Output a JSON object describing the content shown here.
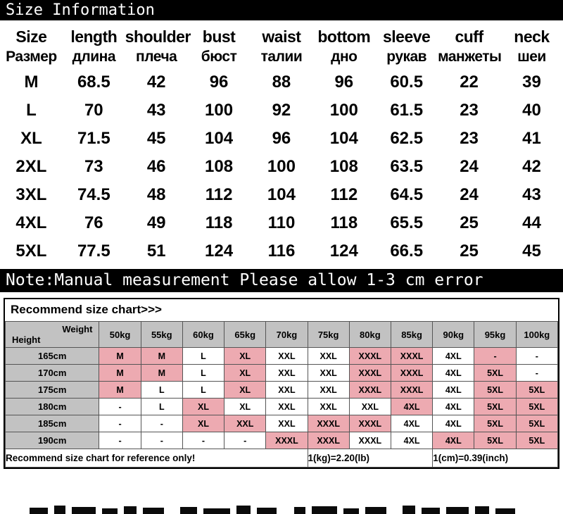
{
  "title_bar": {
    "text": "Size Information"
  },
  "size_table": {
    "columns": [
      {
        "en": "Size",
        "ru": "Размер"
      },
      {
        "en": "length",
        "ru": "длина"
      },
      {
        "en": "shoulder",
        "ru": "плеча"
      },
      {
        "en": "bust",
        "ru": "бюст"
      },
      {
        "en": "waist",
        "ru": "талии"
      },
      {
        "en": "bottom",
        "ru": "дно"
      },
      {
        "en": "sleeve",
        "ru": "рукав"
      },
      {
        "en": "cuff",
        "ru": "манжеты"
      },
      {
        "en": "neck",
        "ru": "шеи"
      }
    ],
    "rows": [
      [
        "M",
        "68.5",
        "42",
        "96",
        "88",
        "96",
        "60.5",
        "22",
        "39"
      ],
      [
        "L",
        "70",
        "43",
        "100",
        "92",
        "100",
        "61.5",
        "23",
        "40"
      ],
      [
        "XL",
        "71.5",
        "45",
        "104",
        "96",
        "104",
        "62.5",
        "23",
        "41"
      ],
      [
        "2XL",
        "73",
        "46",
        "108",
        "100",
        "108",
        "63.5",
        "24",
        "42"
      ],
      [
        "3XL",
        "74.5",
        "48",
        "112",
        "104",
        "112",
        "64.5",
        "24",
        "43"
      ],
      [
        "4XL",
        "76",
        "49",
        "118",
        "110",
        "118",
        "65.5",
        "25",
        "44"
      ],
      [
        "5XL",
        "77.5",
        "51",
        "124",
        "116",
        "124",
        "66.5",
        "25",
        "45"
      ]
    ]
  },
  "note_bar": {
    "text": "Note:Manual measurement Please allow 1-3 cm error"
  },
  "recommend": {
    "title": "Recommend size chart>>>",
    "corner": {
      "height_label": "Height",
      "weight_label": "Weight"
    },
    "weights": [
      "50kg",
      "55kg",
      "60kg",
      "65kg",
      "70kg",
      "75kg",
      "80kg",
      "85kg",
      "90kg",
      "95kg",
      "100kg"
    ],
    "heights": [
      "165cm",
      "170cm",
      "175cm",
      "180cm",
      "185cm",
      "190cm"
    ],
    "cells": [
      [
        "M",
        "M",
        "L",
        "XL",
        "XXL",
        "XXL",
        "XXXL",
        "XXXL",
        "4XL",
        "-",
        "-"
      ],
      [
        "M",
        "M",
        "L",
        "XL",
        "XXL",
        "XXL",
        "XXXL",
        "XXXL",
        "4XL",
        "5XL",
        "-"
      ],
      [
        "M",
        "L",
        "L",
        "XL",
        "XXL",
        "XXL",
        "XXXL",
        "XXXL",
        "4XL",
        "5XL",
        "5XL"
      ],
      [
        "-",
        "L",
        "XL",
        "XL",
        "XXL",
        "XXL",
        "XXL",
        "4XL",
        "4XL",
        "5XL",
        "5XL"
      ],
      [
        "-",
        "-",
        "XL",
        "XXL",
        "XXL",
        "XXXL",
        "XXXL",
        "4XL",
        "4XL",
        "5XL",
        "5XL"
      ],
      [
        "-",
        "-",
        "-",
        "-",
        "XXXL",
        "XXXL",
        "XXXL",
        "4XL",
        "4XL",
        "5XL",
        "5XL"
      ]
    ],
    "highlights": [
      [
        1,
        1,
        0,
        1,
        0,
        0,
        1,
        1,
        0,
        1,
        0
      ],
      [
        1,
        1,
        0,
        1,
        0,
        0,
        1,
        1,
        0,
        1,
        0
      ],
      [
        1,
        0,
        0,
        1,
        0,
        0,
        1,
        1,
        0,
        1,
        1
      ],
      [
        0,
        0,
        1,
        0,
        0,
        0,
        0,
        1,
        0,
        1,
        1
      ],
      [
        0,
        0,
        1,
        1,
        0,
        1,
        1,
        0,
        0,
        1,
        1
      ],
      [
        0,
        0,
        0,
        0,
        1,
        1,
        0,
        0,
        1,
        1,
        1
      ]
    ],
    "footer": {
      "left": "Recommend size chart for reference only!",
      "kg": "1(kg)=2.20(lb)",
      "cm": "1(cm)=0.39(inch)"
    },
    "colors": {
      "header_bg": "#c2c2c2",
      "highlight": "#edaab1"
    }
  },
  "colors": {
    "bar_bg": "#000000",
    "bar_text": "#ffffff"
  }
}
